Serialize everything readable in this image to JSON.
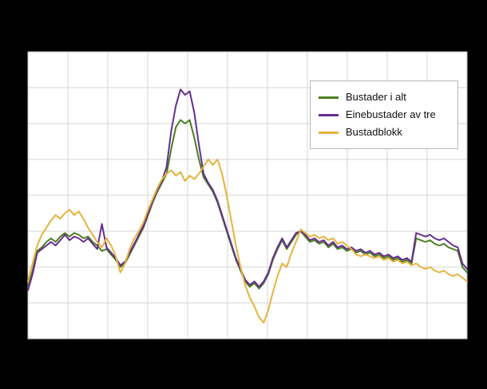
{
  "page": {
    "background_color": "#000000",
    "plot_background_color": "#ffffff",
    "grid_color": "#d6d6d6",
    "title": "",
    "axis_tick_labels_visible": false
  },
  "chart_data": {
    "type": "line",
    "title": "",
    "xlabel": "",
    "ylabel": "",
    "ylim": [
      0,
      8
    ],
    "grid": true,
    "legend_position": "upper-right",
    "x_note": "monthly-style observation index, axis tick labels not visible in image",
    "n_points": 96,
    "series": [
      {
        "name": "Bustader i alt",
        "color": "#4b7e22",
        "values": [
          1.45,
          1.9,
          2.45,
          2.55,
          2.7,
          2.8,
          2.7,
          2.85,
          2.95,
          2.85,
          2.95,
          2.9,
          2.8,
          2.85,
          2.7,
          2.6,
          2.45,
          2.5,
          2.35,
          2.2,
          2.0,
          2.1,
          2.35,
          2.6,
          2.85,
          3.1,
          3.45,
          3.8,
          4.1,
          4.35,
          4.6,
          5.3,
          5.9,
          6.1,
          6.0,
          6.1,
          5.6,
          5.0,
          4.5,
          4.3,
          4.1,
          3.8,
          3.4,
          3.0,
          2.6,
          2.2,
          1.9,
          1.6,
          1.45,
          1.55,
          1.4,
          1.55,
          1.8,
          2.2,
          2.5,
          2.75,
          2.5,
          2.7,
          2.9,
          3.0,
          2.85,
          2.7,
          2.75,
          2.65,
          2.7,
          2.55,
          2.65,
          2.5,
          2.55,
          2.45,
          2.5,
          2.4,
          2.45,
          2.35,
          2.4,
          2.3,
          2.35,
          2.25,
          2.3,
          2.2,
          2.25,
          2.15,
          2.2,
          2.1,
          2.8,
          2.75,
          2.7,
          2.75,
          2.65,
          2.6,
          2.65,
          2.55,
          2.5,
          2.45,
          2.0,
          1.85
        ]
      },
      {
        "name": "Einebustader av tre",
        "color": "#662d91",
        "values": [
          1.35,
          1.8,
          2.4,
          2.5,
          2.6,
          2.7,
          2.6,
          2.75,
          2.9,
          2.75,
          2.85,
          2.8,
          2.7,
          2.8,
          2.65,
          2.5,
          3.2,
          2.55,
          2.4,
          2.25,
          2.05,
          2.15,
          2.4,
          2.65,
          2.9,
          3.15,
          3.5,
          3.85,
          4.15,
          4.4,
          4.8,
          5.8,
          6.5,
          6.95,
          6.8,
          6.9,
          6.3,
          5.4,
          4.6,
          4.35,
          4.15,
          3.85,
          3.45,
          3.05,
          2.65,
          2.25,
          1.95,
          1.65,
          1.5,
          1.6,
          1.45,
          1.6,
          1.85,
          2.25,
          2.55,
          2.8,
          2.55,
          2.75,
          2.95,
          3.0,
          2.9,
          2.75,
          2.8,
          2.7,
          2.75,
          2.6,
          2.7,
          2.55,
          2.6,
          2.5,
          2.55,
          2.45,
          2.5,
          2.4,
          2.45,
          2.35,
          2.4,
          2.3,
          2.35,
          2.25,
          2.3,
          2.2,
          2.25,
          2.15,
          2.95,
          2.9,
          2.85,
          2.9,
          2.8,
          2.75,
          2.8,
          2.7,
          2.6,
          2.55,
          2.1,
          1.95
        ]
      },
      {
        "name": "Bustadblokk",
        "color": "#e6b33d",
        "values": [
          1.6,
          2.1,
          2.6,
          2.9,
          3.1,
          3.3,
          3.45,
          3.35,
          3.5,
          3.6,
          3.45,
          3.55,
          3.35,
          3.1,
          2.9,
          2.7,
          2.55,
          2.8,
          2.6,
          2.3,
          1.85,
          2.1,
          2.5,
          2.8,
          3.0,
          3.25,
          3.6,
          3.9,
          4.2,
          4.45,
          4.6,
          4.7,
          4.55,
          4.65,
          4.4,
          4.55,
          4.45,
          4.6,
          4.8,
          5.0,
          4.85,
          5.0,
          4.6,
          4.0,
          3.3,
          2.6,
          2.0,
          1.5,
          1.15,
          0.9,
          0.6,
          0.45,
          0.8,
          1.3,
          1.75,
          2.1,
          2.0,
          2.4,
          2.7,
          3.05,
          2.95,
          2.85,
          2.9,
          2.8,
          2.85,
          2.75,
          2.8,
          2.65,
          2.7,
          2.6,
          2.5,
          2.35,
          2.3,
          2.35,
          2.3,
          2.25,
          2.3,
          2.2,
          2.25,
          2.15,
          2.2,
          2.1,
          2.15,
          2.05,
          2.1,
          2.0,
          1.95,
          2.0,
          1.9,
          1.85,
          1.9,
          1.8,
          1.75,
          1.8,
          1.7,
          1.6
        ]
      }
    ]
  }
}
